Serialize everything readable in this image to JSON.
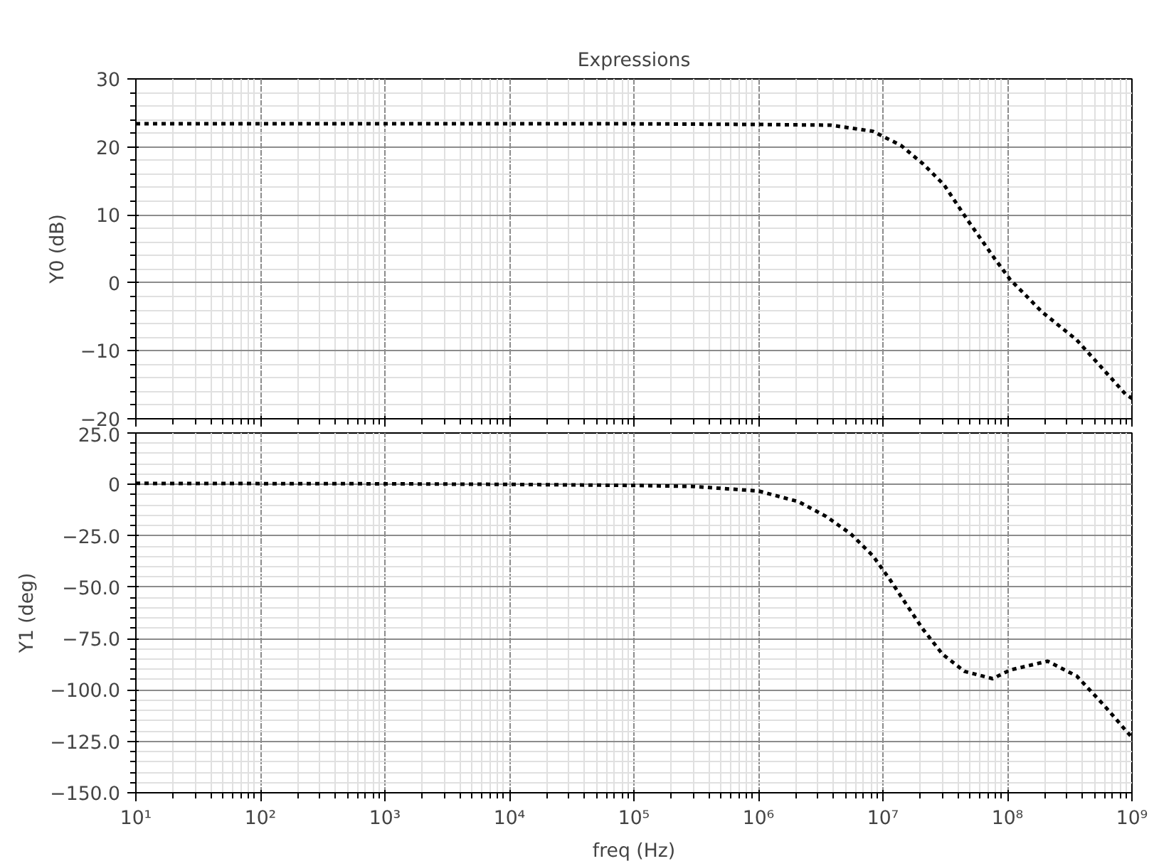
{
  "chart_data": [
    {
      "type": "line",
      "title": "Expressions",
      "ylabel": "Y0 (dB)",
      "log": "x",
      "grid": true,
      "marker": "none",
      "line_style": "dotted",
      "tick_labels": "y",
      "xlim": [
        10,
        1000000000
      ],
      "xticks": [
        {
          "value": 10,
          "label": null
        },
        {
          "value": 100,
          "label": null
        },
        {
          "value": 1000,
          "label": null
        },
        {
          "value": 10000,
          "label": null
        },
        {
          "value": 100000,
          "label": null
        },
        {
          "value": 1000000,
          "label": null
        },
        {
          "value": 10000000,
          "label": null
        },
        {
          "value": 100000000,
          "label": null
        },
        {
          "value": 1000000000,
          "label": null
        }
      ],
      "ylim": [
        -20,
        30
      ],
      "yticks": [
        -20,
        -10,
        0,
        10,
        20,
        30
      ],
      "x": [
        10,
        1000,
        100000,
        1000000,
        3800000,
        8300000,
        14000000,
        21000000,
        31000000,
        48000000,
        78000000,
        105000000,
        190000000,
        360000000,
        600000000,
        890000000,
        1000000000
      ],
      "series": [
        {
          "color": "#000000",
          "values": [
            23.4,
            23.4,
            23.4,
            23.3,
            23.2,
            22.3,
            20.2,
            17.5,
            14.4,
            9.2,
            3.7,
            0.5,
            -4.3,
            -8.4,
            -12.9,
            -16.4,
            -17
          ]
        }
      ]
    },
    {
      "type": "line",
      "xlabel": "freq (Hz)",
      "ylabel": "Y1 (deg)",
      "log": "x",
      "grid": true,
      "marker": "none",
      "line_style": "dotted",
      "xlim": [
        10,
        1000000000
      ],
      "xticks": [
        {
          "value": 10,
          "label": "10¹"
        },
        {
          "value": 100,
          "label": "10²"
        },
        {
          "value": 1000,
          "label": "10³"
        },
        {
          "value": 10000,
          "label": "10⁴"
        },
        {
          "value": 100000,
          "label": "10⁵"
        },
        {
          "value": 1000000,
          "label": "10⁶"
        },
        {
          "value": 10000000,
          "label": "10⁷"
        },
        {
          "value": 100000000,
          "label": "10⁸"
        },
        {
          "value": 1000000000,
          "label": "10⁹"
        }
      ],
      "ylim": [
        -150,
        25
      ],
      "yticks": [
        {
          "value": -150,
          "label": "−150.0"
        },
        {
          "value": -125,
          "label": "−125.0"
        },
        {
          "value": -100,
          "label": "−100.0"
        },
        {
          "value": -75,
          "label": "−75.0"
        },
        {
          "value": -50,
          "label": "−50.0"
        },
        {
          "value": -25,
          "label": "−25.0"
        },
        0,
        {
          "value": 25,
          "label": "25.0"
        }
      ],
      "x": [
        10,
        1000,
        10000,
        100000,
        300000,
        1000000,
        2100000,
        3500000,
        5500000,
        8300000,
        11500000,
        15500000,
        21000000,
        30000000,
        45000000,
        76000000,
        105000000,
        210000000,
        360000000,
        600000000,
        890000000,
        1000000000
      ],
      "series": [
        {
          "color": "#000000",
          "values": [
            0.5,
            0.3,
            0,
            -0.5,
            -1,
            -3.2,
            -8.4,
            -15.6,
            -24,
            -34.7,
            -46.7,
            -58.6,
            -70.5,
            -82.5,
            -90.9,
            -94.5,
            -90.3,
            -86,
            -93.2,
            -107.6,
            -119.6,
            -123
          ]
        }
      ]
    }
  ]
}
